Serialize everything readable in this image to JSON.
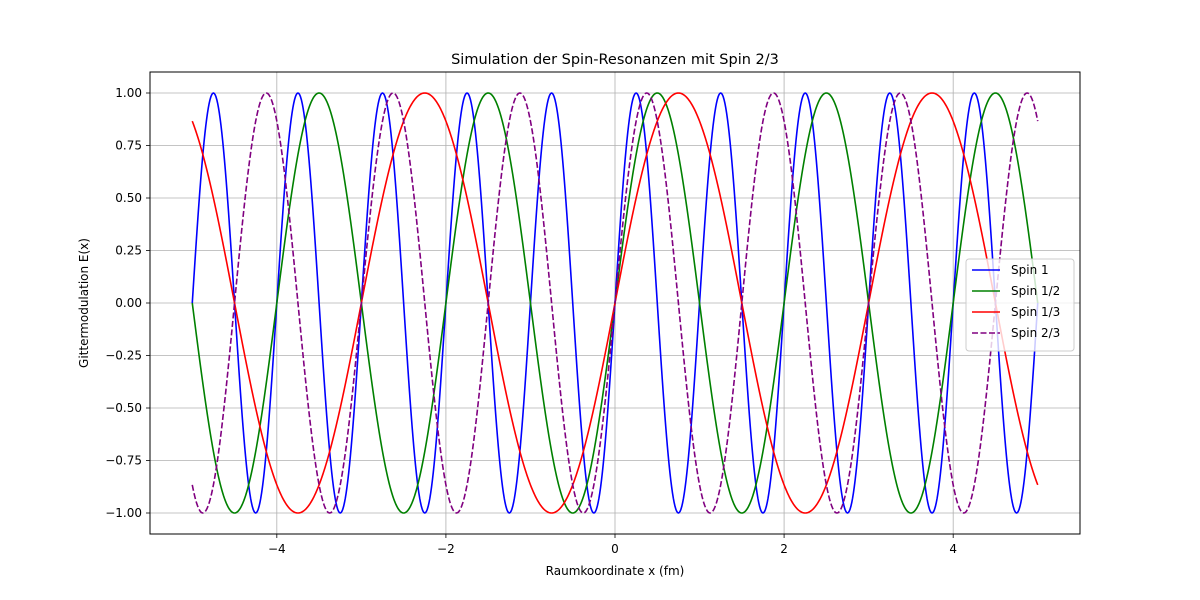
{
  "chart_data": {
    "type": "line",
    "title": "Simulation der Spin-Resonanzen mit Spin 2/3",
    "xlabel": "Raumkoordinate x (fm)",
    "ylabel": "Gittermodulation E(x)",
    "xlim": [
      -5.5,
      5.5
    ],
    "ylim": [
      -1.1,
      1.1
    ],
    "xticks": [
      -4,
      -2,
      0,
      2,
      4
    ],
    "xtick_labels": [
      "−4",
      "−2",
      "0",
      "2",
      "4"
    ],
    "yticks": [
      -1.0,
      -0.75,
      -0.5,
      -0.25,
      0.0,
      0.25,
      0.5,
      0.75,
      1.0
    ],
    "ytick_labels": [
      "−1.00",
      "−0.75",
      "−0.50",
      "−0.25",
      "0.00",
      "0.25",
      "0.50",
      "0.75",
      "1.00"
    ],
    "grid": true,
    "legend_position": "center-right",
    "x_domain": [
      -5,
      5
    ],
    "series": [
      {
        "name": "Spin 1",
        "function": "sin(2*pi*x)",
        "color": "#0000ff",
        "style": "solid"
      },
      {
        "name": "Spin 1/2",
        "function": "sin(pi*x)",
        "color": "#008000",
        "style": "solid"
      },
      {
        "name": "Spin 1/3",
        "function": "sin(2*pi*x/3)",
        "color": "#ff0000",
        "style": "solid"
      },
      {
        "name": "Spin 2/3",
        "function": "sin(4*pi*x/3)",
        "color": "#800080",
        "style": "dashed"
      }
    ]
  }
}
